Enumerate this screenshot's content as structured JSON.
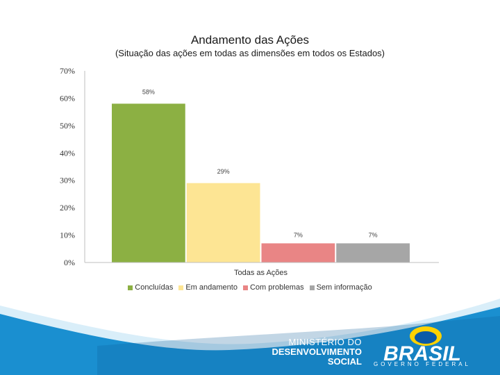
{
  "chart_data": {
    "type": "bar",
    "title": "Andamento das Ações",
    "subtitle": "(Situação das ações em todas as dimensões em todos os Estados)",
    "categories": [
      "Todas as Ações"
    ],
    "series": [
      {
        "name": "Concluídas",
        "values": [
          58
        ],
        "label": "58%",
        "color": "#8cb043"
      },
      {
        "name": "Em andamento",
        "values": [
          29
        ],
        "label": "29%",
        "color": "#fde594"
      },
      {
        "name": "Com problemas",
        "values": [
          7
        ],
        "label": "7%",
        "color": "#e98585"
      },
      {
        "name": "Sem informação",
        "values": [
          7
        ],
        "label": "7%",
        "color": "#a6a6a6"
      }
    ],
    "yticks": [
      "0%",
      "10%",
      "20%",
      "30%",
      "40%",
      "50%",
      "60%",
      "70%"
    ],
    "ylim": [
      0,
      70
    ],
    "grid": false,
    "legend": "bottom"
  },
  "footer": {
    "ministry_line1": "MINISTÉRIO DO",
    "ministry_line2": "DESENVOLVIMENTO",
    "ministry_line3": "SOCIAL",
    "brand": "BRASIL",
    "brand_sub": "GOVERNO FEDERAL",
    "accent_blue": "#1a8fd0",
    "dark_blue": "#0d5c99"
  }
}
